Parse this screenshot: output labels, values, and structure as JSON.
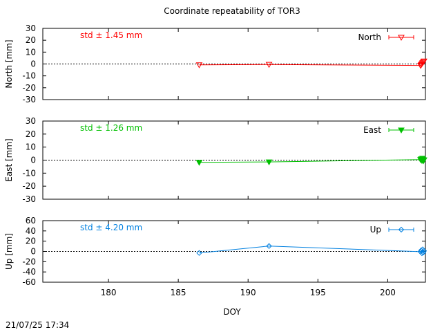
{
  "chart_data": {
    "type": "line",
    "title": "Coordinate repeatability of TOR3",
    "xlabel": "DOY",
    "timestamp": "21/07/25 17:34",
    "xlim": [
      175.3,
      202.7
    ],
    "xticks": [
      "180",
      "185",
      "190",
      "195",
      "200"
    ],
    "panels": [
      {
        "name": "North",
        "ylabel": "North [mm]",
        "ylim": [
          -30,
          30
        ],
        "yticks": [
          "30",
          "20",
          "10",
          "0",
          "-10",
          "-20",
          "-30"
        ],
        "std": "std ± 1.45 mm",
        "color": "#ff0000",
        "marker": "triangle-down-open",
        "series": [
          {
            "name": "North",
            "x": [
              186.5,
              191.5,
              202.35,
              202.4,
              202.45,
              202.5,
              202.55,
              202.6
            ],
            "y": [
              -0.7,
              -0.4,
              -1.2,
              -0.6,
              0.3,
              1.0,
              1.8,
              2.5
            ]
          }
        ]
      },
      {
        "name": "East",
        "ylabel": "East [mm]",
        "ylim": [
          -30,
          30
        ],
        "yticks": [
          "30",
          "20",
          "10",
          "0",
          "-10",
          "-20",
          "-30"
        ],
        "std": "std ± 1.26 mm",
        "color": "#00c000",
        "marker": "triangle-down-filled",
        "series": [
          {
            "name": "East",
            "x": [
              186.5,
              191.5,
              202.35,
              202.4,
              202.45,
              202.5,
              202.55,
              202.6
            ],
            "y": [
              -1.7,
              -1.4,
              0.4,
              0.9,
              -0.3,
              1.4,
              -0.6,
              0.2
            ]
          }
        ]
      },
      {
        "name": "Up",
        "ylabel": "Up [mm]",
        "ylim": [
          -60,
          60
        ],
        "yticks": [
          "60",
          "40",
          "20",
          "0",
          "-20",
          "-40",
          "-60"
        ],
        "std": "std ± 4.20 mm",
        "color": "#0080e0",
        "marker": "diamond-open",
        "series": [
          {
            "name": "Up",
            "x": [
              186.5,
              191.5,
              202.35,
              202.4,
              202.45,
              202.5,
              202.55,
              202.6
            ],
            "y": [
              -3.0,
              10.5,
              -0.5,
              2.0,
              -3.5,
              4.0,
              -2.0,
              1.0
            ]
          }
        ]
      }
    ]
  }
}
